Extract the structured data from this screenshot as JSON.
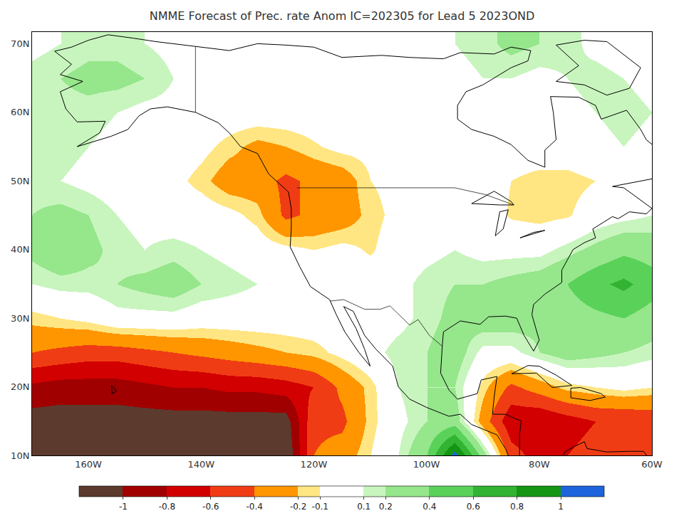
{
  "chart_data": {
    "type": "heatmap",
    "title": "NMME Forecast of Prec. rate Anom IC=202305 for Lead 5 2023OND",
    "x": [
      -170,
      -165,
      -160,
      -155,
      -150,
      -145,
      -140,
      -135,
      -130,
      -125,
      -120,
      -115,
      -110,
      -105,
      -100,
      -95,
      -90,
      -85,
      -80,
      -75,
      -70,
      -65,
      -60
    ],
    "y": [
      10,
      15,
      20,
      25,
      30,
      35,
      40,
      45,
      50,
      55,
      60,
      65,
      70
    ],
    "z": [
      [
        -1.2,
        -1.2,
        -1.2,
        -1.2,
        -1.2,
        -1.2,
        -1.2,
        -1.2,
        -1.2,
        -1.2,
        -0.4,
        -0.3,
        -0.1,
        0.1,
        0.4,
        1.1,
        0.3,
        -0.5,
        -0.7,
        -0.6,
        -0.5,
        -0.4,
        -0.4
      ],
      [
        -1.1,
        -1.1,
        -1.1,
        -1.1,
        -1.1,
        -1.1,
        -1.1,
        -1.1,
        -1.1,
        -1.1,
        -0.45,
        -0.45,
        -0.15,
        0.05,
        0.2,
        0.3,
        -0.3,
        -0.75,
        -0.8,
        -0.7,
        -0.6,
        -0.6,
        -0.55
      ],
      [
        -0.85,
        -0.9,
        -0.9,
        -0.9,
        -0.85,
        -0.8,
        -0.8,
        -0.75,
        -0.75,
        -0.7,
        -0.6,
        -0.35,
        -0.15,
        0.1,
        0.2,
        0.2,
        -0.15,
        -0.45,
        -0.3,
        -0.15,
        -0.1,
        -0.05,
        -0.1
      ],
      [
        -0.4,
        -0.45,
        -0.5,
        -0.5,
        -0.45,
        -0.4,
        -0.35,
        -0.3,
        -0.25,
        -0.2,
        -0.15,
        -0.05,
        0.05,
        0.15,
        0.2,
        0.3,
        0.05,
        0.05,
        0.2,
        0.3,
        0.25,
        0.2,
        0.15
      ],
      [
        -0.15,
        -0.1,
        -0.05,
        0.05,
        0.05,
        0.05,
        0,
        0,
        0,
        0,
        0,
        0,
        0,
        0.05,
        0.15,
        0.25,
        0.3,
        0.3,
        0.25,
        0.3,
        0.35,
        0.4,
        0.3
      ],
      [
        0.1,
        0.15,
        0.15,
        0.2,
        0.25,
        0.3,
        0.2,
        0.15,
        0.1,
        0,
        0,
        0,
        0,
        0.05,
        0.15,
        0.2,
        0.2,
        0.25,
        0.3,
        0.4,
        0.55,
        0.65,
        0.5
      ],
      [
        0.25,
        0.35,
        0.25,
        0.15,
        0.1,
        0.15,
        0.1,
        0.05,
        0,
        -0.05,
        -0.1,
        -0.05,
        -0.12,
        0,
        0.05,
        0.1,
        0.05,
        0.05,
        0.05,
        0.15,
        0.25,
        0.35,
        0.3
      ],
      [
        0.2,
        0.25,
        0.2,
        0.1,
        0.05,
        0,
        0,
        -0.05,
        -0.15,
        -0.45,
        -0.35,
        -0.3,
        -0.15,
        -0.05,
        0,
        0,
        0,
        -0.12,
        -0.15,
        -0.12,
        0,
        0.05,
        0.1
      ],
      [
        0.15,
        0.1,
        0.05,
        0,
        0,
        -0.05,
        -0.15,
        -0.3,
        -0.3,
        -0.45,
        -0.35,
        -0.3,
        -0.1,
        -0.05,
        0,
        0,
        0,
        -0.1,
        -0.15,
        -0.15,
        -0.1,
        0,
        0
      ],
      [
        0.15,
        0.15,
        0.1,
        0.05,
        0,
        0,
        -0.05,
        -0.15,
        -0.25,
        -0.2,
        -0.12,
        -0.05,
        -0.05,
        0,
        0,
        0,
        0,
        0,
        0,
        0,
        0.05,
        0.1,
        0.05
      ],
      [
        0.15,
        0.15,
        0.15,
        0.1,
        0.05,
        0.05,
        0,
        0,
        0,
        0,
        0,
        0,
        0,
        0,
        0,
        0,
        0,
        0,
        0,
        0.05,
        0.1,
        0.15,
        0.1
      ],
      [
        0.15,
        0.2,
        0.25,
        0.25,
        0.2,
        0.1,
        0.05,
        0,
        0,
        0,
        0,
        0,
        0,
        0,
        0,
        0.05,
        0.1,
        0.1,
        0.05,
        0.1,
        0.15,
        0.1,
        0.05
      ],
      [
        0.05,
        0.1,
        0.15,
        0.15,
        0.1,
        0.05,
        0,
        0,
        0,
        0,
        0,
        0,
        0,
        0.05,
        0.05,
        0.1,
        0.15,
        0.25,
        0.2,
        0.15,
        0.05,
        0,
        0
      ]
    ],
    "xlim": [
      -170,
      -60
    ],
    "ylim": [
      10,
      71.7
    ],
    "xticks": [
      {
        "value": -160,
        "label": "160W"
      },
      {
        "value": -140,
        "label": "140W"
      },
      {
        "value": -120,
        "label": "120W"
      },
      {
        "value": -100,
        "label": "100W"
      },
      {
        "value": -80,
        "label": "80W"
      },
      {
        "value": -60,
        "label": "60W"
      }
    ],
    "yticks": [
      {
        "value": 10,
        "label": "10N"
      },
      {
        "value": 20,
        "label": "20N"
      },
      {
        "value": 30,
        "label": "30N"
      },
      {
        "value": 40,
        "label": "40N"
      },
      {
        "value": 50,
        "label": "50N"
      },
      {
        "value": 60,
        "label": "60N"
      },
      {
        "value": 70,
        "label": "70N"
      }
    ],
    "grid": true,
    "colorbar": {
      "levels": [
        -1,
        -0.8,
        -0.6,
        -0.4,
        -0.2,
        -0.1,
        0.1,
        0.2,
        0.4,
        0.6,
        0.8,
        1
      ],
      "colors": [
        "#5c3a2e",
        "#a00000",
        "#d20000",
        "#f03c14",
        "#ff9600",
        "#ffe682",
        "#ffffff",
        "#c8f5be",
        "#96e68c",
        "#5ad25a",
        "#32b432",
        "#149614",
        "#1e64dc"
      ],
      "ticks": [
        -1,
        -0.8,
        -0.6,
        -0.4,
        -0.2,
        -0.1,
        0.1,
        0.2,
        0.4,
        0.6,
        0.8,
        1
      ]
    },
    "coastline": {
      "lon": [
        -166,
        -163,
        -165,
        -161,
        -165,
        -164,
        -162,
        -157,
        -158,
        -162,
        -156,
        -153,
        -151,
        -149,
        -146,
        -141,
        -137,
        -135,
        -133,
        -130,
        -128,
        -124.5,
        -124,
        -124,
        -124.2,
        -122.5,
        -120.6,
        -117.2,
        -116,
        -114.5,
        -112,
        -110,
        -111,
        -112.5,
        -114.7,
        -113,
        -111,
        -109,
        -106,
        -105,
        -103,
        -100,
        -96,
        -94,
        -92,
        -90,
        -87.5,
        -86,
        -85.5,
        null,
        -83.5,
        -83.5,
        -83.2,
        -86,
        -88.3,
        -88,
        -87.5,
        -90.3,
        -91,
        -94.5,
        -96,
        -97.5,
        -97.2,
        -97,
        -94,
        -90.5,
        -89,
        -86,
        -84,
        -82.7,
        -81,
        -80,
        -81.3,
        -81,
        -79,
        -76,
        -76,
        -74,
        -72,
        -70,
        -70.5,
        -67,
        -66,
        -64,
        -61,
        -60,
        -65,
        -67,
        -60,
        -56,
        -58,
        -61,
        -62,
        -64.5,
        -69,
        -70,
        -73,
        -78,
        -77.5,
        -77,
        -79,
        -79,
        -82,
        -85,
        -88,
        -92,
        -94.5,
        -94.5,
        -93,
        -90,
        -87,
        -85,
        -82,
        -81.5,
        -85,
        -88,
        -94,
        -97,
        -103,
        -108,
        -115,
        -120,
        -125,
        -130,
        -135,
        -141,
        -148,
        -152,
        -156.5,
        -160,
        -163,
        -166,
        null,
        -62,
        -64,
        -68,
        -72,
        -77,
        -73,
        -77,
        -72,
        -68,
        -62,
        null,
        -84.9,
        -82,
        -80,
        -77,
        -74.2,
        -77.7,
        -80.5,
        -84.9,
        null,
        -74.4,
        -72.7,
        -69,
        -68.3,
        -71,
        -74.4,
        -74.4,
        null,
        -76,
        -75.5,
        -74,
        -72,
        -71.5,
        -68,
        -64,
        -61.5,
        -60,
        null,
        -155.9,
        -155,
        -155.8,
        -155.9,
        null,
        -92,
        -88,
        -85,
        -84.5,
        -87,
        -92,
        null,
        -87.8,
        -87,
        -85.5,
        -86.4,
        -87.8,
        null,
        -83.4,
        -79,
        -81,
        -83.4
      ],
      "lat": [
        68.9,
        67,
        65.5,
        64.5,
        63,
        60.5,
        58.6,
        58.7,
        57,
        55,
        56.5,
        57.5,
        59.5,
        60.5,
        60.8,
        60,
        58.5,
        57,
        55,
        54,
        51,
        48.4,
        46,
        43,
        40.4,
        37.5,
        34.6,
        32.7,
        30.5,
        28,
        25,
        23,
        25.5,
        28.5,
        31.7,
        31,
        27.5,
        25.5,
        23,
        20,
        18.2,
        17,
        15.7,
        16,
        14.5,
        13.8,
        13,
        11,
        10,
        null,
        10,
        13,
        15,
        16,
        16,
        18.5,
        21.5,
        21,
        19,
        18.2,
        19.5,
        22,
        26,
        28,
        29.6,
        29.1,
        30.2,
        30.3,
        30,
        27.5,
        25.2,
        26.8,
        30.5,
        32,
        33.5,
        35.2,
        37,
        40,
        41,
        41.7,
        43,
        44.8,
        44.5,
        45.5,
        45.2,
        46,
        49,
        49.2,
        50.3,
        51.5,
        54,
        56,
        57.5,
        60.3,
        59,
        61,
        62.2,
        62.3,
        60,
        56,
        54.5,
        52,
        53,
        55.3,
        56.5,
        57.5,
        59,
        61,
        63,
        64,
        65.5,
        66.5,
        67.5,
        69,
        69.5,
        68.5,
        68.7,
        67.8,
        68,
        68.3,
        68,
        69.5,
        69.8,
        70,
        69,
        69.6,
        70.3,
        70.8,
        71.3,
        70.5,
        69.5,
        68.9,
        null,
        66.5,
        63.5,
        62.5,
        64,
        64.5,
        66.8,
        69.8,
        70.5,
        70.3,
        66.5,
        null,
        21.9,
        23.1,
        23,
        21.7,
        20.2,
        19.9,
        22,
        21.9,
        null,
        19.8,
        19.9,
        19,
        18.5,
        18,
        18.4,
        19.8,
        null,
        9,
        10.5,
        11.2,
        12,
        11,
        10.5,
        10.6,
        10.6,
        9,
        null,
        20.2,
        19.4,
        19,
        20.2,
        null,
        46.7,
        48.5,
        47,
        46.5,
        46.5,
        46.7,
        null,
        42,
        45.5,
        45.8,
        43,
        42,
        null,
        41.7,
        42.8,
        42.5,
        41.7
      ]
    },
    "borders": {
      "lon": [
        -141,
        -141,
        null,
        -123,
        -95,
        -89.5,
        -84.5,
        null,
        -117.1,
        -114.7,
        -111,
        -108.2,
        -106.5,
        -103,
        -101.5,
        -99.5,
        -97.2
      ],
      "lat": [
        69.6,
        60,
        null,
        49,
        49,
        48,
        46.5,
        null,
        32.5,
        32.7,
        31.3,
        31.3,
        31.8,
        29,
        29.8,
        27.5,
        25.9
      ]
    }
  }
}
